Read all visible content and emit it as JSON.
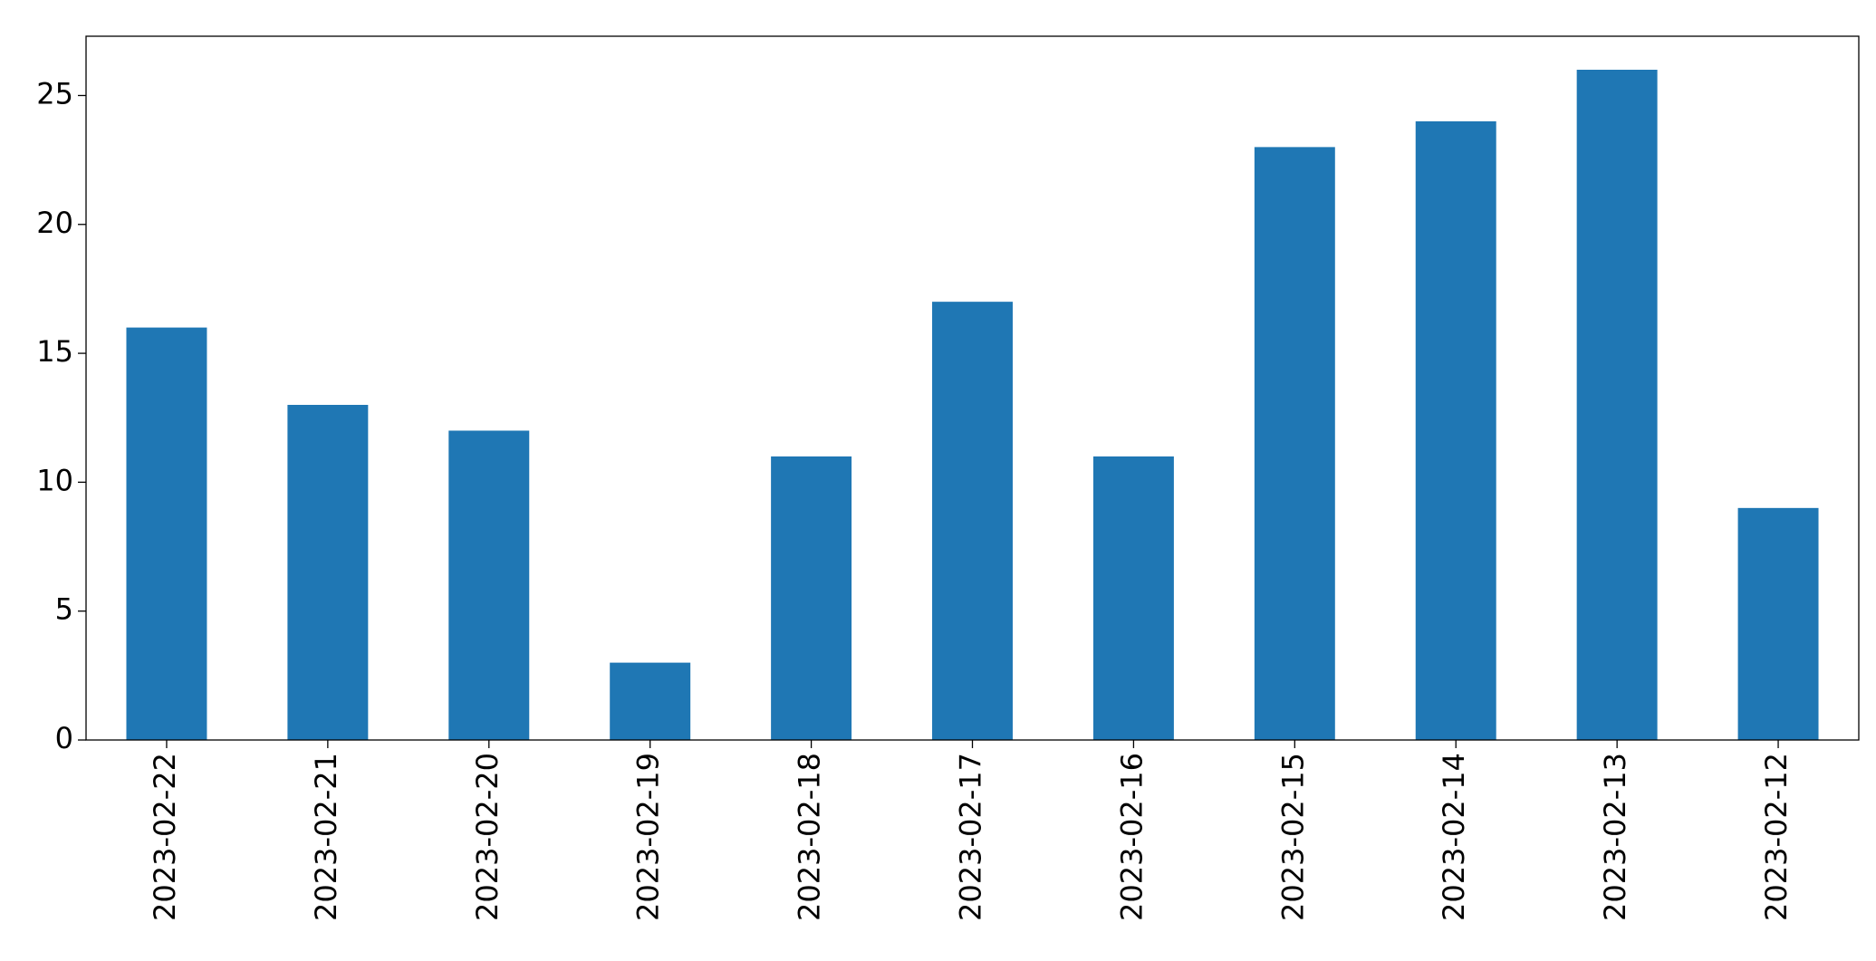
{
  "chart_data": {
    "type": "bar",
    "categories": [
      "2023-02-22",
      "2023-02-21",
      "2023-02-20",
      "2023-02-19",
      "2023-02-18",
      "2023-02-17",
      "2023-02-16",
      "2023-02-15",
      "2023-02-14",
      "2023-02-13",
      "2023-02-12"
    ],
    "values": [
      16,
      13,
      12,
      3,
      11,
      17,
      11,
      23,
      24,
      26,
      9
    ],
    "color": "#1f77b4",
    "ylim": [
      0,
      27.3
    ],
    "yticks": [
      0,
      5,
      10,
      15,
      20,
      25
    ],
    "grid": false
  }
}
